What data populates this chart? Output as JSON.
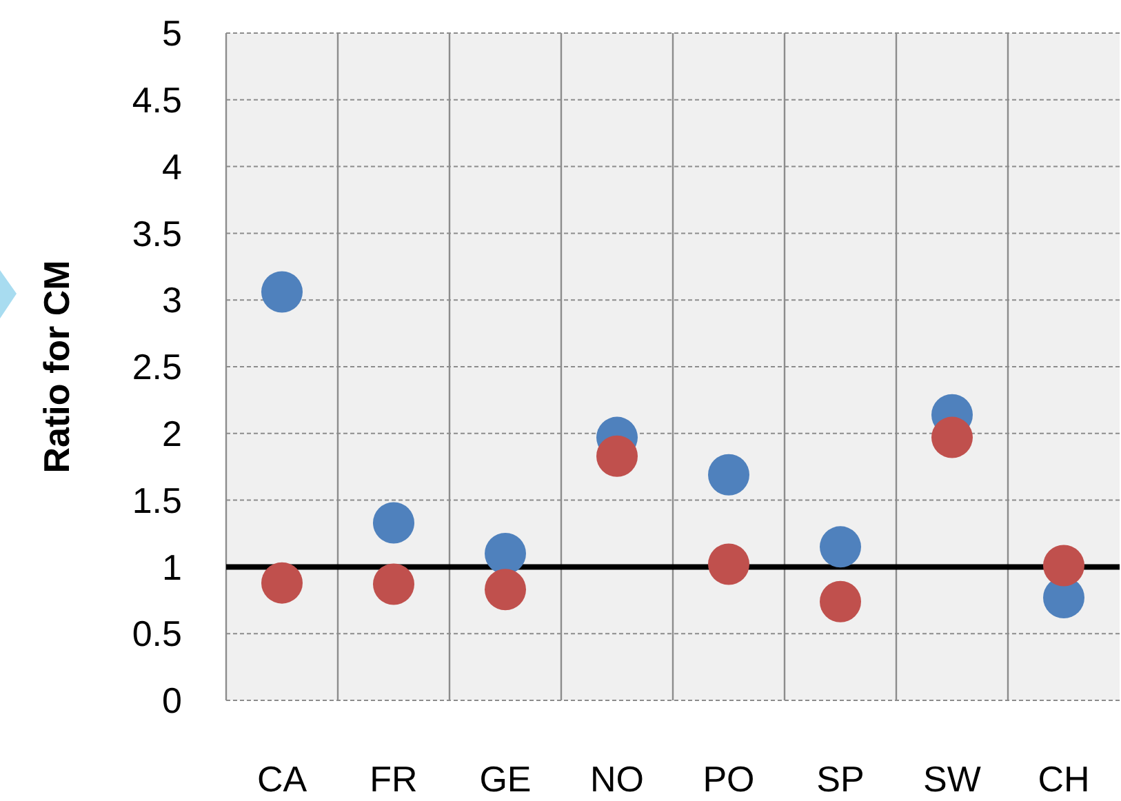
{
  "chart_data": {
    "type": "scatter",
    "ylabel": "Ratio for CM",
    "categories": [
      "CA",
      "FR",
      "GE",
      "NO",
      "PO",
      "SP",
      "SW",
      "CH"
    ],
    "series": [
      {
        "color": "#4f81bd",
        "values": [
          3.06,
          1.33,
          1.1,
          1.97,
          1.69,
          1.15,
          2.14,
          0.77
        ]
      },
      {
        "color": "#c0504d",
        "values": [
          0.88,
          0.87,
          0.83,
          1.83,
          1.02,
          0.74,
          1.97,
          1.01
        ]
      }
    ],
    "ylim": [
      0,
      5
    ],
    "yticks": [
      0,
      {
        "value": 0.5,
        "label": "0.5"
      },
      1,
      {
        "value": 1.5,
        "label": "1.5"
      },
      2,
      {
        "value": 2.5,
        "label": "2.5"
      },
      3,
      {
        "value": 3.5,
        "label": "3.5"
      },
      4,
      {
        "value": 4.5,
        "label": "4.5"
      },
      5
    ],
    "ref_lines": [
      {
        "axis": "y",
        "value": 1,
        "color": "#000000"
      }
    ],
    "grid": "y",
    "marker": "circle"
  }
}
